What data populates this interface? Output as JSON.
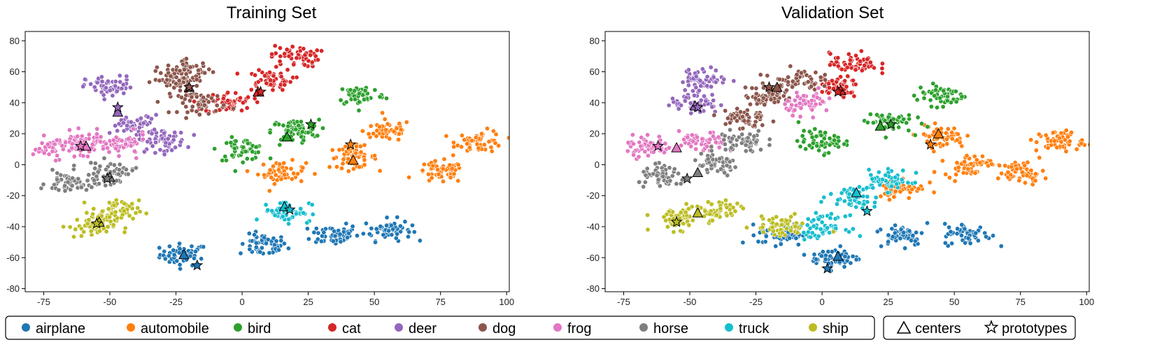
{
  "chart_data": [
    {
      "type": "scatter",
      "title": "Training Set",
      "xlim": [
        -82,
        101
      ],
      "ylim": [
        -82,
        86
      ],
      "xticks": [
        "-75",
        "-50",
        "-25",
        "0",
        "25",
        "50",
        "75",
        "100"
      ],
      "yticks": [
        "80",
        "60",
        "40",
        "20",
        "0",
        "-20",
        "-40",
        "-60",
        "-80"
      ],
      "series": [
        {
          "name": "airplane",
          "color": "#1f77b4",
          "centroids": [
            [
              -22,
              -58
            ],
            [
              8,
              -52
            ],
            [
              35,
              -45
            ],
            [
              55,
              -42
            ]
          ],
          "center": [
            -22,
            -58
          ],
          "prototype": [
            -17,
            -65
          ]
        },
        {
          "name": "automobile",
          "color": "#ff7f0e",
          "centroids": [
            [
              15,
              -5
            ],
            [
              42,
              5
            ],
            [
              55,
              22
            ],
            [
              75,
              -5
            ],
            [
              90,
              15
            ]
          ],
          "center": [
            42,
            3
          ],
          "prototype": [
            41,
            13
          ]
        },
        {
          "name": "bird",
          "color": "#2ca02c",
          "centroids": [
            [
              0,
              10
            ],
            [
              20,
              22
            ],
            [
              45,
              45
            ]
          ],
          "center": [
            17,
            18
          ],
          "prototype": [
            26,
            26
          ]
        },
        {
          "name": "cat",
          "color": "#d62728",
          "centroids": [
            [
              -5,
              40
            ],
            [
              10,
              55
            ],
            [
              20,
              70
            ]
          ],
          "center": [
            6,
            47
          ],
          "prototype": [
            7,
            47
          ]
        },
        {
          "name": "deer",
          "color": "#9467bd",
          "centroids": [
            [
              -50,
              50
            ],
            [
              -40,
              25
            ],
            [
              -30,
              15
            ]
          ],
          "center": [
            -47,
            34
          ],
          "prototype": [
            -47,
            37
          ]
        },
        {
          "name": "dog",
          "color": "#8c564b",
          "centroids": [
            [
              -25,
              55
            ],
            [
              -15,
              40
            ],
            [
              -20,
              60
            ]
          ],
          "center": [
            -20,
            50
          ],
          "prototype": [
            -20,
            50
          ]
        },
        {
          "name": "frog",
          "color": "#e377c2",
          "centroids": [
            [
              -70,
              11
            ],
            [
              -60,
              14
            ],
            [
              -45,
              13
            ]
          ],
          "center": [
            -59,
            12
          ],
          "prototype": [
            -61,
            12
          ]
        },
        {
          "name": "horse",
          "color": "#7f7f7f",
          "centroids": [
            [
              -65,
              -12
            ],
            [
              -50,
              -5
            ]
          ],
          "center": [
            -50,
            -8
          ],
          "prototype": [
            -51,
            -9
          ]
        },
        {
          "name": "truck",
          "color": "#17becf",
          "centroids": [
            [
              17,
              -30
            ]
          ],
          "center": [
            16,
            -27
          ],
          "prototype": [
            18,
            -29
          ]
        },
        {
          "name": "ship",
          "color": "#bcbd22",
          "centroids": [
            [
              -57,
              -40
            ],
            [
              -48,
              -30
            ]
          ],
          "center": [
            -54,
            -37
          ],
          "prototype": [
            -55,
            -38
          ]
        }
      ]
    },
    {
      "type": "scatter",
      "title": "Validation Set",
      "xlim": [
        -82,
        101
      ],
      "ylim": [
        -82,
        86
      ],
      "xticks": [
        "-75",
        "-50",
        "-25",
        "0",
        "25",
        "50",
        "75",
        "100"
      ],
      "yticks": [
        "80",
        "60",
        "40",
        "20",
        "0",
        "-20",
        "-40",
        "-60",
        "-80"
      ],
      "series": [
        {
          "name": "airplane",
          "color": "#1f77b4",
          "centroids": [
            [
              -15,
              -45
            ],
            [
              5,
              -60
            ],
            [
              30,
              -45
            ],
            [
              55,
              -45
            ]
          ],
          "center": [
            6,
            -59
          ],
          "prototype": [
            2,
            -67
          ]
        },
        {
          "name": "automobile",
          "color": "#ff7f0e",
          "centroids": [
            [
              30,
              -15
            ],
            [
              45,
              18
            ],
            [
              55,
              0
            ],
            [
              75,
              -5
            ],
            [
              90,
              15
            ]
          ],
          "center": [
            44,
            20
          ],
          "prototype": [
            41,
            13
          ]
        },
        {
          "name": "bird",
          "color": "#2ca02c",
          "centroids": [
            [
              0,
              15
            ],
            [
              25,
              28
            ],
            [
              45,
              45
            ]
          ],
          "center": [
            22,
            25
          ],
          "prototype": [
            26,
            26
          ]
        },
        {
          "name": "cat",
          "color": "#d62728",
          "centroids": [
            [
              5,
              50
            ],
            [
              12,
              65
            ]
          ],
          "center": [
            7,
            48
          ],
          "prototype": [
            6,
            47
          ]
        },
        {
          "name": "deer",
          "color": "#9467bd",
          "centroids": [
            [
              -48,
              40
            ],
            [
              -45,
              55
            ]
          ],
          "center": [
            -48,
            38
          ],
          "prototype": [
            -47,
            37
          ]
        },
        {
          "name": "dog",
          "color": "#8c564b",
          "centroids": [
            [
              -20,
              45
            ],
            [
              -10,
              55
            ],
            [
              -30,
              30
            ]
          ],
          "center": [
            -17,
            50
          ],
          "prototype": [
            -20,
            50
          ]
        },
        {
          "name": "frog",
          "color": "#e377c2",
          "centroids": [
            [
              -65,
              12
            ],
            [
              -45,
              14
            ],
            [
              -5,
              40
            ]
          ],
          "center": [
            -55,
            11
          ],
          "prototype": [
            -62,
            12
          ]
        },
        {
          "name": "horse",
          "color": "#7f7f7f",
          "centroids": [
            [
              -60,
              -8
            ],
            [
              -40,
              0
            ],
            [
              -30,
              15
            ]
          ],
          "center": [
            -47,
            -5
          ],
          "prototype": [
            -51,
            -9
          ]
        },
        {
          "name": "truck",
          "color": "#17becf",
          "centroids": [
            [
              12,
              -20
            ],
            [
              0,
              -40
            ],
            [
              25,
              -10
            ]
          ],
          "center": [
            13,
            -18
          ],
          "prototype": [
            17,
            -30
          ]
        },
        {
          "name": "ship",
          "color": "#bcbd22",
          "centroids": [
            [
              -55,
              -35
            ],
            [
              -40,
              -30
            ],
            [
              -15,
              -40
            ]
          ],
          "center": [
            -47,
            -31
          ],
          "prototype": [
            -55,
            -37
          ]
        }
      ]
    }
  ],
  "legend": {
    "classes": [
      {
        "label": "airplane",
        "color": "#1f77b4"
      },
      {
        "label": "automobile",
        "color": "#ff7f0e"
      },
      {
        "label": "bird",
        "color": "#2ca02c"
      },
      {
        "label": "cat",
        "color": "#d62728"
      },
      {
        "label": "deer",
        "color": "#9467bd"
      },
      {
        "label": "dog",
        "color": "#8c564b"
      },
      {
        "label": "frog",
        "color": "#e377c2"
      },
      {
        "label": "horse",
        "color": "#7f7f7f"
      },
      {
        "label": "truck",
        "color": "#17becf"
      },
      {
        "label": "ship",
        "color": "#bcbd22"
      }
    ],
    "markers": [
      {
        "label": "centers",
        "icon": "triangle-outline-icon"
      },
      {
        "label": "prototypes",
        "icon": "star-outline-icon"
      }
    ]
  }
}
